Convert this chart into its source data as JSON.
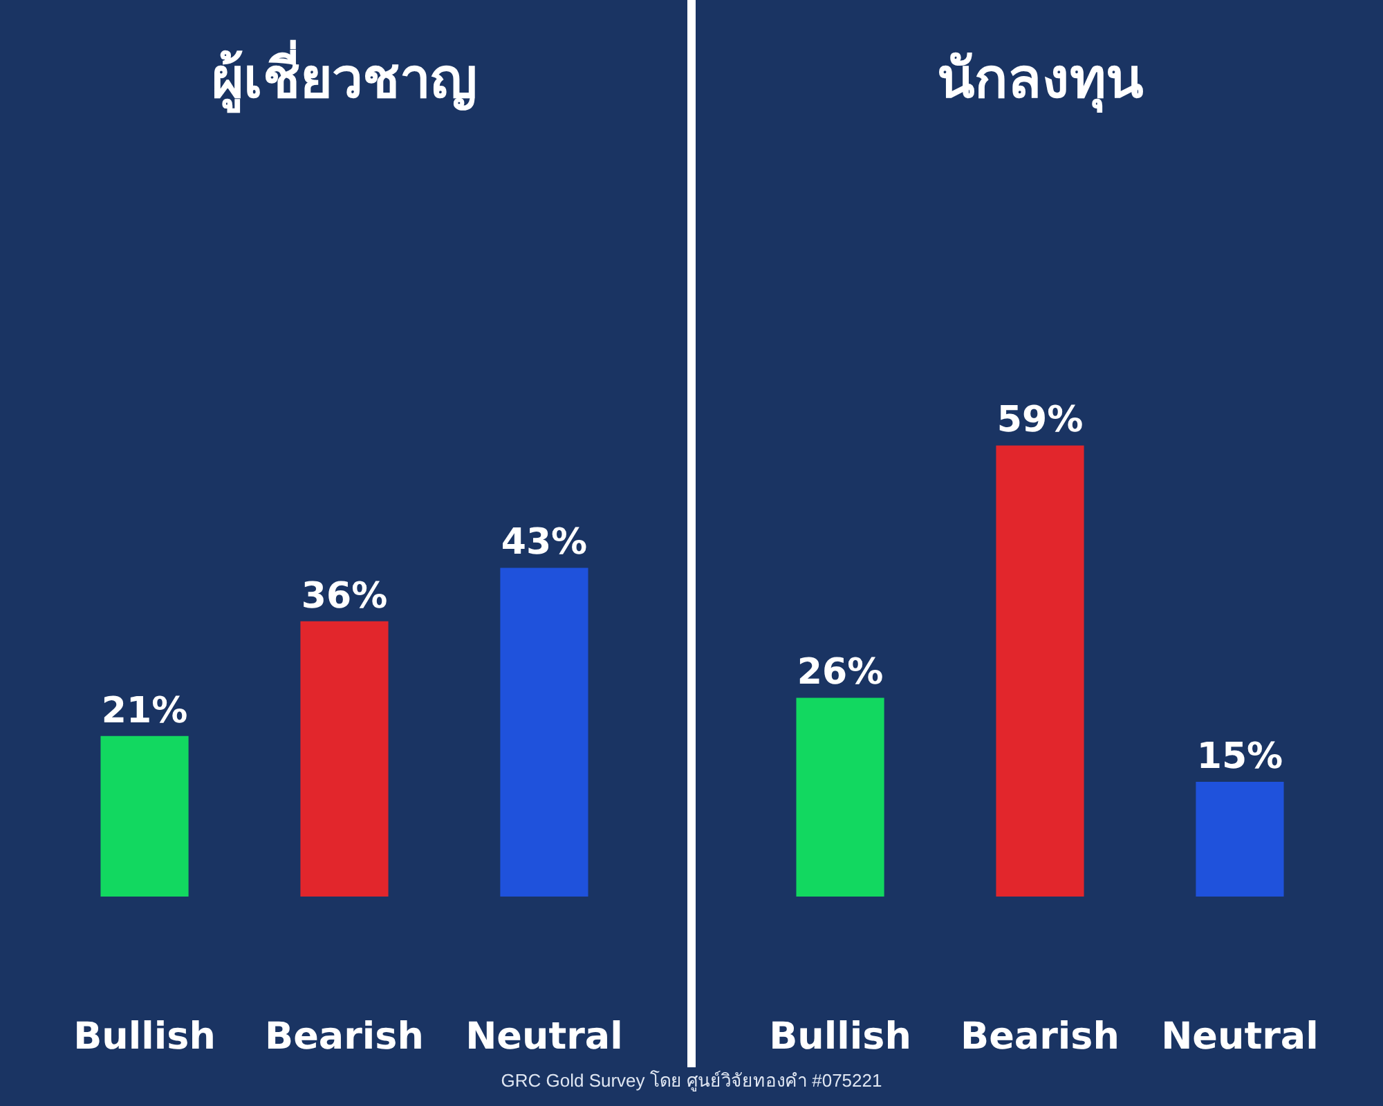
{
  "chart_data": [
    {
      "type": "bar",
      "title": "ผู้เชี่ยวชาญ",
      "categories": [
        "Bullish",
        "Bearish",
        "Neutral"
      ],
      "values": [
        21,
        36,
        43
      ],
      "value_labels": [
        "21%",
        "36%",
        "43%"
      ],
      "colors": [
        "#12d860",
        "#e2262c",
        "#1f52dc"
      ],
      "tick_labels": "x",
      "annotations": [
        "GRC Gold Survey โดย ศูนย์วิจัยทองคำ #075221"
      ]
    },
    {
      "type": "bar",
      "title": "นักลงทุน",
      "categories": [
        "Bullish",
        "Bearish",
        "Neutral"
      ],
      "values": [
        26,
        59,
        15
      ],
      "value_labels": [
        "26%",
        "59%",
        "15%"
      ],
      "colors": [
        "#12d860",
        "#e2262c",
        "#1f52dc"
      ],
      "tick_labels": "x"
    }
  ]
}
